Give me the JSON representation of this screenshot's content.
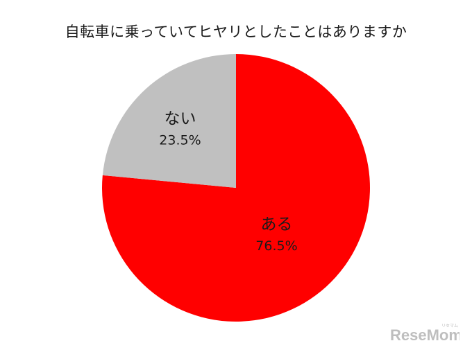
{
  "chart_data": {
    "type": "pie",
    "title": "自転車に乗っていてヒヤリとしたことはありますか",
    "categories": [
      "ある",
      "ない"
    ],
    "values": [
      76.5,
      23.5
    ],
    "value_labels": [
      "76.5%",
      "23.5%"
    ],
    "colors": [
      "#ff0000",
      "#c0c0c0"
    ],
    "start_angle_deg": 0,
    "direction": "clockwise",
    "legend": "none"
  },
  "watermark": {
    "text": "ReseMom",
    "kana": "リセマム",
    "color": "#8a8a8a"
  }
}
